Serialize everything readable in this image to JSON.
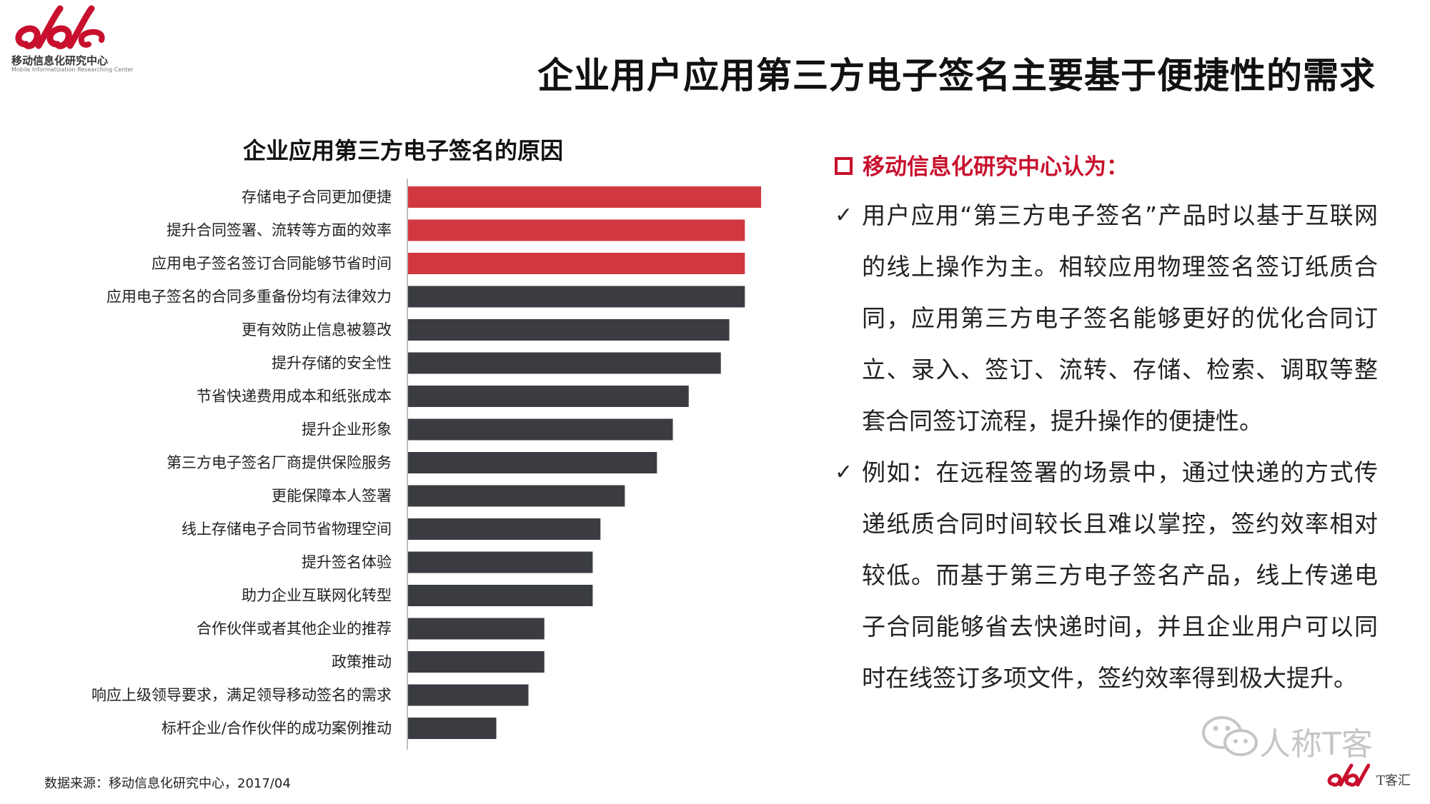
{
  "header": {
    "logo_org": "移动信息化研究中心",
    "logo_org_en": "Mobile Informatization Researching Center",
    "title": "企业用户应用第三方电子签名主要基于便捷性的需求"
  },
  "colors": {
    "highlight": "#d1373f",
    "normal": "#3a3c42",
    "accent": "#c8102e"
  },
  "chart_data": {
    "type": "bar",
    "orientation": "horizontal",
    "title": "企业应用第三方电子签名的原因",
    "categories": [
      "存储电子合同更加便捷",
      "提升合同签署、流转等方面的效率",
      "应用电子签名签订合同能够节省时间",
      "应用电子签名的合同多重备份均有法律效力",
      "更有效防止信息被篡改",
      "提升存储的安全性",
      "节省快递费用成本和纸张成本",
      "提升企业形象",
      "第三方电子签名厂商提供保险服务",
      "更能保障本人签署",
      "线上存储电子合同节省物理空间",
      "提升签名体验",
      "助力企业互联网化转型",
      "合作伙伴或者其他企业的推荐",
      "政策推动",
      "响应上级领导要求，满足领导移动签名的需求",
      "标杆企业/合作伙伴的成功案例推动"
    ],
    "values": [
      100,
      95.4,
      95.4,
      95.4,
      91.0,
      88.6,
      79.5,
      75.0,
      70.5,
      61.4,
      54.5,
      52.3,
      52.3,
      38.6,
      38.6,
      34.1,
      25.0
    ],
    "highlighted": [
      true,
      true,
      true,
      false,
      false,
      false,
      false,
      false,
      false,
      false,
      false,
      false,
      false,
      false,
      false,
      false,
      false
    ],
    "xlim": [
      0,
      100
    ],
    "xlabel": "",
    "ylabel": ""
  },
  "source": "数据来源：移动信息化研究中心，2017/04",
  "right": {
    "header": "移动信息化研究中心认为：",
    "check_mark": "✓",
    "points": [
      "用户应用“第三方电子签名”产品时以基于互联网的线上操作为主。相较应用物理签名签订纸质合同，应用第三方电子签名能够更好的优化合同订立、录入、签订、流转、存储、检索、调取等整套合同签订流程，提升操作的便捷性。",
      "例如：在远程签署的场景中，通过快递的方式传递纸质合同时间较长且难以掌控，签约效率相对较低。而基于第三方电子签名产品，线上传递电子合同能够省去快递时间，并且企业用户可以同时在线签订多项文件，签约效率得到极大提升。"
    ]
  },
  "watermark": "人称T客",
  "footer_brand": "T客汇"
}
